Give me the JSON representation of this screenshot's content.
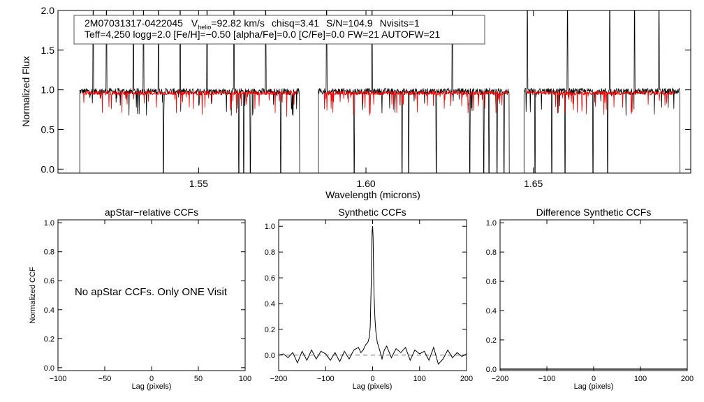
{
  "chart_data": [
    {
      "type": "line",
      "id": "spectrum",
      "info": {
        "star_id": "2M07031317-0422045",
        "vhelio_label": "V",
        "vhelio_sub": "helio",
        "vhelio_value": "=92.82 km/s",
        "chisq": "chisq=3.41",
        "snr": "S/N=104.9",
        "nvisits": "Nvisits=1",
        "line2": "Teff=4,250 logg=2.0 [Fe/H]=−0.50 [alpha/Fe]=0.0 [C/Fe]=0.0 FW=21 AUTOFW=21"
      },
      "xlabel": "Wavelength (microns)",
      "ylabel": "Normalized Flux",
      "xlim": [
        1.508,
        1.697
      ],
      "ylim": [
        -0.05,
        2.0
      ],
      "xticks": [
        1.55,
        1.6,
        1.65
      ],
      "xtick_labels": [
        "1.55",
        "1.60",
        "1.65"
      ],
      "yticks": [
        0.0,
        0.5,
        1.0,
        1.5,
        2.0
      ],
      "ytick_labels": [
        "0.0",
        "0.5",
        "1.0",
        "1.5",
        "2.0"
      ],
      "series": [
        {
          "role": "observed",
          "color": "#000000",
          "chips": [
            [
              1.5145,
              1.5802
            ],
            [
              1.5858,
              1.6428
            ],
            [
              1.6472,
              1.6938
            ]
          ],
          "continuum": 0.98,
          "spikes_up": [
            1.5185,
            1.5225,
            1.5305,
            1.5335,
            1.538,
            1.5445,
            1.5525,
            1.5605,
            1.5655,
            1.57,
            1.5882,
            1.6018,
            1.6108,
            1.6258,
            1.6352,
            1.6412,
            1.6482,
            1.6602,
            1.6728,
            1.6802,
            1.6875
          ],
          "spikes_down": [
            1.5395,
            1.562,
            1.5635,
            1.5655,
            1.5745,
            1.5965,
            1.6108,
            1.6128,
            1.621,
            1.631,
            1.6352,
            1.6368,
            1.6392,
            1.6412,
            1.6505,
            1.6555,
            1.6595,
            1.6678,
            1.6722
          ]
        },
        {
          "role": "synthetic",
          "color": "#ff0000",
          "chips": [
            [
              1.5155,
              1.5795
            ],
            [
              1.5875,
              1.6425
            ],
            [
              1.648,
              1.692
            ]
          ],
          "continuum": 0.96
        }
      ]
    },
    {
      "type": "line",
      "id": "apstar-ccf",
      "title": "apStar−relative CCFs",
      "xlabel": "Lag (pixels)",
      "ylabel": "Normalized CCF",
      "xlim": [
        -100,
        100
      ],
      "ylim": [
        -0.02,
        1.02
      ],
      "xticks": [
        -100,
        -50,
        0,
        50,
        100
      ],
      "xtick_labels": [
        "−100",
        "−50",
        "0",
        "50",
        "100"
      ],
      "yticks": [
        0.0,
        0.2,
        0.4,
        0.6,
        0.8,
        1.0
      ],
      "ytick_labels": [
        "0.0",
        "0.2",
        "0.4",
        "0.6",
        "0.8",
        "1.0"
      ],
      "annotation": "No apStar CCFs.  Only ONE Visit",
      "series": []
    },
    {
      "type": "line",
      "id": "synthetic-ccf",
      "title": "Synthetic CCFs",
      "xlabel": "Lag (pixels)",
      "ylabel": "",
      "xlim": [
        -200,
        200
      ],
      "ylim": [
        -0.12,
        1.05
      ],
      "xticks": [
        -200,
        -100,
        0,
        100,
        200
      ],
      "xtick_labels": [
        "−200",
        "−100",
        "0",
        "100",
        "200"
      ],
      "yticks": [
        0.0,
        0.2,
        0.4,
        0.6,
        0.8,
        1.0
      ],
      "ytick_labels": [
        "0.0",
        "0.2",
        "0.4",
        "0.6",
        "0.8",
        "1.0"
      ],
      "baseline": 0.0,
      "series": [
        {
          "color": "#000000",
          "x": [
            -200,
            -190,
            -180,
            -170,
            -160,
            -150,
            -140,
            -130,
            -120,
            -110,
            -100,
            -90,
            -80,
            -70,
            -60,
            -50,
            -40,
            -30,
            -25,
            -20,
            -15,
            -10,
            -7,
            -5,
            -3,
            -2,
            -1,
            0,
            1,
            2,
            3,
            5,
            7,
            10,
            15,
            20,
            25,
            30,
            40,
            50,
            60,
            70,
            80,
            90,
            100,
            110,
            120,
            130,
            140,
            150,
            160,
            170,
            180,
            190,
            200
          ],
          "y": [
            0.0,
            0.01,
            -0.02,
            0.02,
            -0.06,
            0.03,
            -0.04,
            0.04,
            -0.03,
            0.03,
            0.01,
            -0.04,
            0.02,
            -0.05,
            0.03,
            -0.03,
            0.04,
            0.06,
            0.02,
            0.04,
            0.08,
            0.1,
            0.14,
            0.22,
            0.55,
            0.8,
            0.96,
            1.0,
            0.92,
            0.7,
            0.48,
            0.28,
            0.18,
            0.1,
            0.04,
            -0.03,
            0.04,
            0.07,
            -0.02,
            0.05,
            0.02,
            0.06,
            -0.04,
            0.04,
            0.01,
            0.03,
            -0.04,
            0.06,
            -0.07,
            -0.03,
            0.04,
            -0.02,
            0.02,
            -0.01,
            0.01
          ]
        }
      ]
    },
    {
      "type": "line",
      "id": "difference-ccf",
      "title": "Difference Synthetic CCFs",
      "xlabel": "Lag (pixels)",
      "ylabel": "",
      "xlim": [
        -200,
        200
      ],
      "ylim": [
        -0.01,
        1.02
      ],
      "xticks": [
        -200,
        -100,
        0,
        100,
        200
      ],
      "xtick_labels": [
        "−200",
        "−100",
        "0",
        "100",
        "200"
      ],
      "yticks": [
        0.0,
        0.2,
        0.4,
        0.6,
        0.8,
        1.0
      ],
      "ytick_labels": [
        "0.0",
        "0.2",
        "0.4",
        "0.6",
        "0.8",
        "1.0"
      ],
      "series": [
        {
          "color": "#000000",
          "x": [
            -200,
            200
          ],
          "y": [
            0.0,
            0.0
          ]
        }
      ]
    }
  ]
}
